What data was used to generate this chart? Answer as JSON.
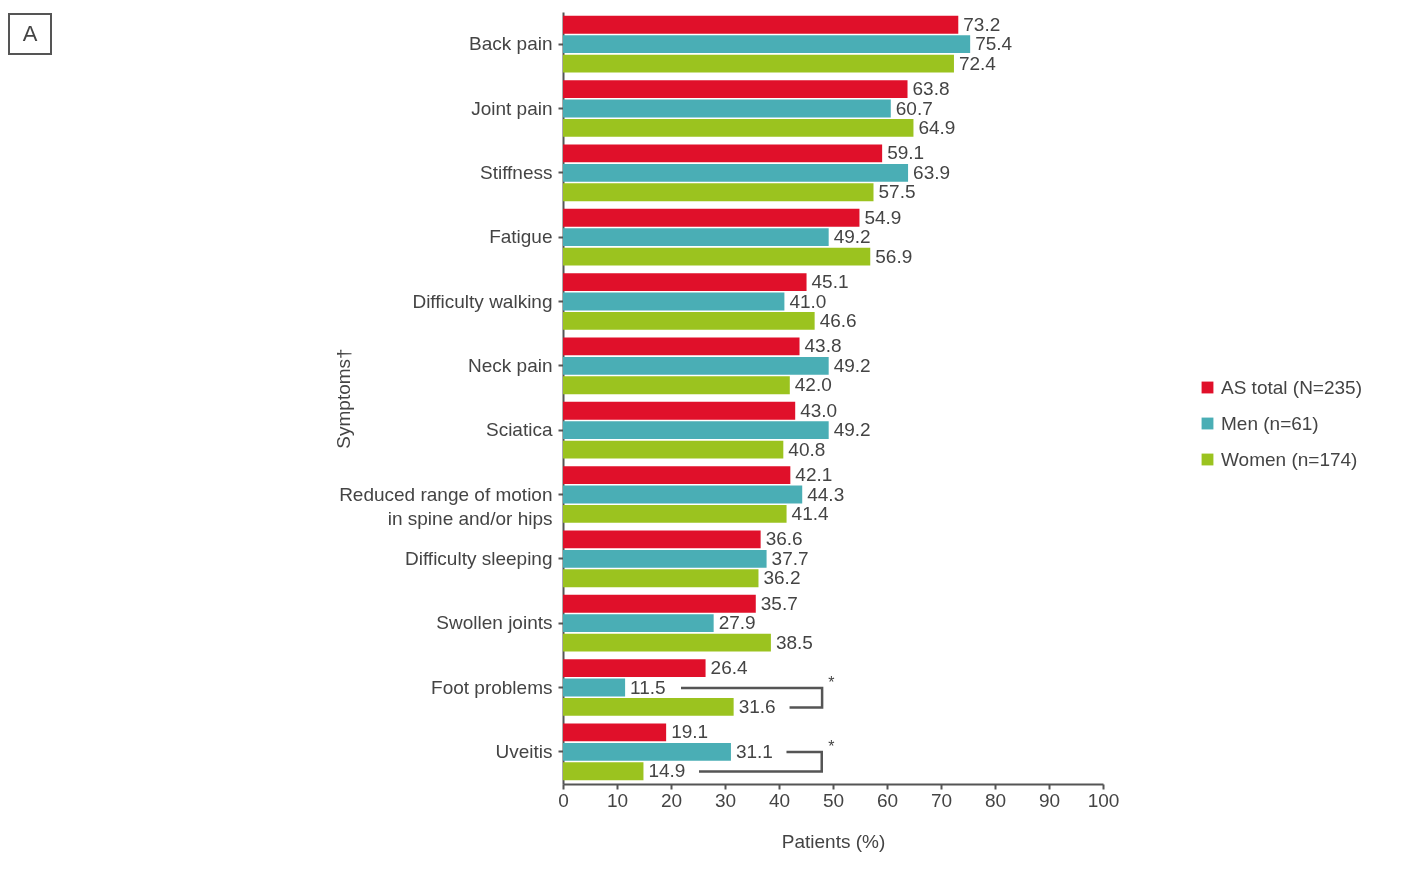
{
  "chart_data": {
    "type": "bar",
    "orientation": "horizontal",
    "ylabel": "Symptoms†",
    "xlabel": "Patients (%)",
    "categories": [
      "Back pain",
      "Joint pain",
      "Stiffness",
      "Fatigue",
      "Difficulty walking",
      "Neck pain",
      "Sciatica",
      "Reduced range of motion\nin spine and/or hips",
      "Difficulty sleeping",
      "Swollen joints",
      "Foot problems",
      "Uveitis"
    ],
    "series": [
      {
        "name": "AS total (N=235)",
        "color": "#e0102a",
        "values": [
          73.2,
          63.8,
          59.1,
          54.9,
          45.1,
          43.8,
          43.0,
          42.1,
          36.6,
          35.7,
          26.4,
          19.1
        ],
        "value_labels": [
          "73.2",
          "63.8",
          "59.1",
          "54.9",
          "45.1",
          "43.8",
          "43.0",
          "42.1",
          "36.6",
          "35.7",
          "26.4",
          "19.1"
        ]
      },
      {
        "name": "Men (n=61)",
        "color": "#4aaeb5",
        "values": [
          75.4,
          60.7,
          63.9,
          49.2,
          41.0,
          49.2,
          49.2,
          44.3,
          37.7,
          27.9,
          11.5,
          31.1
        ],
        "value_labels": [
          "75.4",
          "60.7",
          "63.9",
          "49.2",
          "41.0",
          "49.2",
          "49.2",
          "44.3",
          "37.7",
          "27.9",
          "11.5",
          "31.1"
        ]
      },
      {
        "name": "Women (n=174)",
        "color": "#9bc31f",
        "values": [
          72.4,
          64.9,
          57.5,
          56.9,
          46.6,
          42.0,
          40.8,
          41.4,
          36.2,
          38.5,
          31.6,
          14.9
        ],
        "value_labels": [
          "72.4",
          "64.9",
          "57.5",
          "56.9",
          "46.6",
          "42.0",
          "40.8",
          "41.4",
          "36.2",
          "38.5",
          "31.6",
          "14.9"
        ]
      }
    ],
    "xlim": [
      0,
      100
    ],
    "xticks": [
      0,
      10,
      20,
      30,
      40,
      50,
      60,
      70,
      80,
      90,
      100
    ],
    "legend": "right",
    "grid": false,
    "annotations": [
      "A",
      "*",
      "*"
    ]
  }
}
